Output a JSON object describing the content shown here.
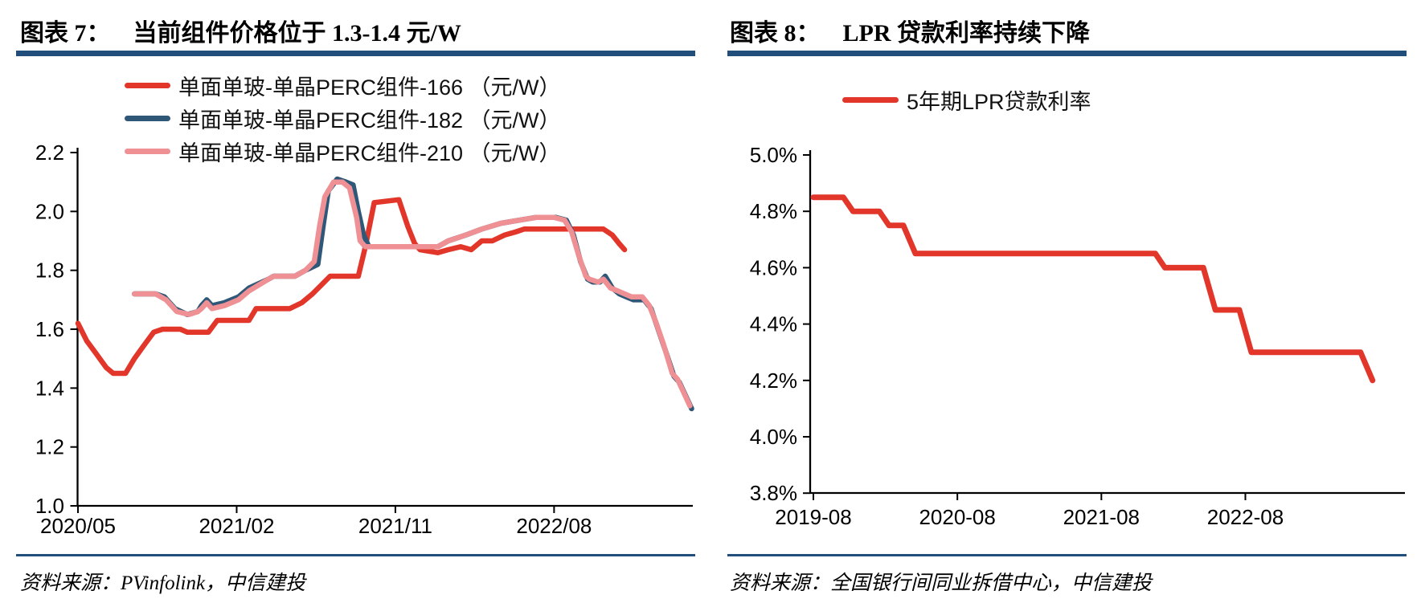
{
  "panels": [
    {
      "fig_label": "图表 7：",
      "title": "当前组件价格位于 1.3-1.4 元/W",
      "source": "资料来源：PVinfolink，中信建投"
    },
    {
      "fig_label": "图表 8：",
      "title": "LPR 贷款利率持续下降",
      "source": "资料来源：全国银行间同业拆借中心，中信建投"
    }
  ],
  "chart_data": [
    {
      "type": "line",
      "title": "当前组件价格位于 1.3-1.4 元/W",
      "ylabel": "元/W",
      "ylim": [
        1.0,
        2.2
      ],
      "xlim": [
        0,
        35.2
      ],
      "x_unit": "months since 2020/05",
      "grid": false,
      "legend_position": "top-left-stacked",
      "yticks": [
        {
          "v": 2.2,
          "label": "2.2"
        },
        {
          "v": 2.0,
          "label": "2.0"
        },
        {
          "v": 1.8,
          "label": "1.8"
        },
        {
          "v": 1.6,
          "label": "1.6"
        },
        {
          "v": 1.4,
          "label": "1.4"
        },
        {
          "v": 1.2,
          "label": "1.2"
        },
        {
          "v": 1.0,
          "label": "1.0"
        }
      ],
      "xticks": [
        {
          "v": 0,
          "label": "2020/05"
        },
        {
          "v": 9,
          "label": "2021/02"
        },
        {
          "v": 18,
          "label": "2021/11"
        },
        {
          "v": 27,
          "label": "2022/08"
        }
      ],
      "series": [
        {
          "name": "单面单玻-单晶PERC组件-166 （元/W）",
          "color": "#e2362a",
          "points": [
            [
              0,
              1.62
            ],
            [
              0.5,
              1.56
            ],
            [
              1,
              1.52
            ],
            [
              1.6,
              1.47
            ],
            [
              2,
              1.45
            ],
            [
              2.7,
              1.45
            ],
            [
              3.2,
              1.5
            ],
            [
              3.8,
              1.55
            ],
            [
              4.3,
              1.59
            ],
            [
              4.8,
              1.6
            ],
            [
              5.8,
              1.6
            ],
            [
              6.2,
              1.59
            ],
            [
              7.4,
              1.59
            ],
            [
              7.9,
              1.63
            ],
            [
              9.7,
              1.63
            ],
            [
              10.1,
              1.67
            ],
            [
              12,
              1.67
            ],
            [
              12.7,
              1.69
            ],
            [
              13.3,
              1.72
            ],
            [
              13.8,
              1.75
            ],
            [
              14.3,
              1.78
            ],
            [
              15.9,
              1.78
            ],
            [
              16.3,
              1.88
            ],
            [
              16.8,
              2.03
            ],
            [
              18.2,
              2.04
            ],
            [
              18.7,
              1.95
            ],
            [
              19.1,
              1.89
            ],
            [
              19.4,
              1.87
            ],
            [
              20.4,
              1.86
            ],
            [
              21,
              1.87
            ],
            [
              21.7,
              1.88
            ],
            [
              22.3,
              1.87
            ],
            [
              22.9,
              1.9
            ],
            [
              23.5,
              1.9
            ],
            [
              24.2,
              1.92
            ],
            [
              24.8,
              1.93
            ],
            [
              25.3,
              1.94
            ],
            [
              29.8,
              1.94
            ],
            [
              30.3,
              1.92
            ],
            [
              30.7,
              1.89
            ],
            [
              31,
              1.87
            ]
          ]
        },
        {
          "name": "单面单玻-单晶PERC组件-182 （元/W）",
          "color": "#2f5878",
          "points": [
            [
              3.2,
              1.72
            ],
            [
              4.4,
              1.72
            ],
            [
              4.9,
              1.71
            ],
            [
              5.5,
              1.67
            ],
            [
              6.2,
              1.65
            ],
            [
              6.8,
              1.66
            ],
            [
              7,
              1.68
            ],
            [
              7.3,
              1.7
            ],
            [
              7.6,
              1.68
            ],
            [
              8.3,
              1.69
            ],
            [
              9.1,
              1.71
            ],
            [
              9.7,
              1.74
            ],
            [
              10.8,
              1.77
            ],
            [
              11.1,
              1.78
            ],
            [
              12.3,
              1.78
            ],
            [
              12.9,
              1.8
            ],
            [
              13.6,
              1.82
            ],
            [
              13.9,
              1.95
            ],
            [
              14.2,
              2.07
            ],
            [
              14.7,
              2.11
            ],
            [
              15.2,
              2.1
            ],
            [
              15.6,
              2.09
            ],
            [
              15.9,
              2.0
            ],
            [
              16.2,
              1.92
            ],
            [
              16.5,
              1.88
            ],
            [
              20.4,
              1.88
            ],
            [
              21,
              1.9
            ],
            [
              22,
              1.92
            ],
            [
              22.9,
              1.94
            ],
            [
              24,
              1.96
            ],
            [
              25,
              1.97
            ],
            [
              26,
              1.98
            ],
            [
              27.1,
              1.98
            ],
            [
              27.7,
              1.97
            ],
            [
              28.1,
              1.92
            ],
            [
              28.5,
              1.83
            ],
            [
              28.9,
              1.77
            ],
            [
              29.2,
              1.76
            ],
            [
              29.6,
              1.76
            ],
            [
              29.9,
              1.78
            ],
            [
              30.3,
              1.74
            ],
            [
              30.7,
              1.72
            ],
            [
              31.1,
              1.71
            ],
            [
              31.5,
              1.7
            ],
            [
              32.1,
              1.7
            ],
            [
              32.5,
              1.67
            ],
            [
              32.9,
              1.6
            ],
            [
              33.3,
              1.53
            ],
            [
              33.8,
              1.44
            ],
            [
              34.1,
              1.42
            ],
            [
              34.8,
              1.33
            ]
          ]
        },
        {
          "name": "单面单玻-单晶PERC组件-210 （元/W）",
          "color": "#ef9094",
          "points": [
            [
              3.2,
              1.72
            ],
            [
              4.4,
              1.72
            ],
            [
              5,
              1.7
            ],
            [
              5.6,
              1.66
            ],
            [
              6.3,
              1.65
            ],
            [
              6.8,
              1.66
            ],
            [
              7,
              1.67
            ],
            [
              7.3,
              1.69
            ],
            [
              7.6,
              1.67
            ],
            [
              8.3,
              1.68
            ],
            [
              9.1,
              1.7
            ],
            [
              9.7,
              1.73
            ],
            [
              10.8,
              1.77
            ],
            [
              11.1,
              1.78
            ],
            [
              12.3,
              1.78
            ],
            [
              12.9,
              1.8
            ],
            [
              13.4,
              1.83
            ],
            [
              13.7,
              1.95
            ],
            [
              14,
              2.05
            ],
            [
              14.5,
              2.1
            ],
            [
              15,
              2.1
            ],
            [
              15.4,
              2.08
            ],
            [
              15.8,
              1.98
            ],
            [
              16,
              1.9
            ],
            [
              16.3,
              1.88
            ],
            [
              20.4,
              1.88
            ],
            [
              21,
              1.9
            ],
            [
              22,
              1.92
            ],
            [
              22.9,
              1.94
            ],
            [
              24,
              1.96
            ],
            [
              25,
              1.97
            ],
            [
              26,
              1.98
            ],
            [
              27,
              1.98
            ],
            [
              27.6,
              1.97
            ],
            [
              28,
              1.93
            ],
            [
              28.4,
              1.85
            ],
            [
              28.8,
              1.78
            ],
            [
              29,
              1.77
            ],
            [
              29.5,
              1.76
            ],
            [
              29.8,
              1.77
            ],
            [
              30.2,
              1.74
            ],
            [
              30.6,
              1.73
            ],
            [
              31,
              1.72
            ],
            [
              31.4,
              1.71
            ],
            [
              32,
              1.71
            ],
            [
              32.4,
              1.68
            ],
            [
              32.8,
              1.62
            ],
            [
              33.2,
              1.55
            ],
            [
              33.7,
              1.45
            ],
            [
              34,
              1.43
            ],
            [
              34.7,
              1.34
            ]
          ]
        }
      ]
    },
    {
      "type": "line",
      "title": "LPR 贷款利率持续下降",
      "ylim": [
        3.8,
        5.0
      ],
      "xlim": [
        0,
        47.5
      ],
      "x_unit": "months since 2019-08",
      "grid": false,
      "legend_position": "top-center",
      "yticks": [
        {
          "v": 5.0,
          "label": "5.0%"
        },
        {
          "v": 4.8,
          "label": "4.8%"
        },
        {
          "v": 4.6,
          "label": "4.6%"
        },
        {
          "v": 4.4,
          "label": "4.4%"
        },
        {
          "v": 4.2,
          "label": "4.2%"
        },
        {
          "v": 4.0,
          "label": "4.0%"
        },
        {
          "v": 3.8,
          "label": "3.8%"
        }
      ],
      "xticks": [
        {
          "v": 0,
          "label": "2019-08"
        },
        {
          "v": 12,
          "label": "2020-08"
        },
        {
          "v": 24,
          "label": "2021-08"
        },
        {
          "v": 36,
          "label": "2022-08"
        }
      ],
      "series": [
        {
          "name": "5年期LPR贷款利率",
          "color": "#e2362a",
          "points": [
            [
              0,
              4.85
            ],
            [
              2.5,
              4.85
            ],
            [
              3.3,
              4.8
            ],
            [
              5.5,
              4.8
            ],
            [
              6.3,
              4.75
            ],
            [
              7.5,
              4.75
            ],
            [
              8.5,
              4.65
            ],
            [
              28.5,
              4.65
            ],
            [
              29.3,
              4.6
            ],
            [
              32.5,
              4.6
            ],
            [
              33.5,
              4.45
            ],
            [
              35.5,
              4.45
            ],
            [
              36.5,
              4.3
            ],
            [
              45.6,
              4.3
            ],
            [
              46.6,
              4.2
            ]
          ]
        }
      ]
    }
  ]
}
